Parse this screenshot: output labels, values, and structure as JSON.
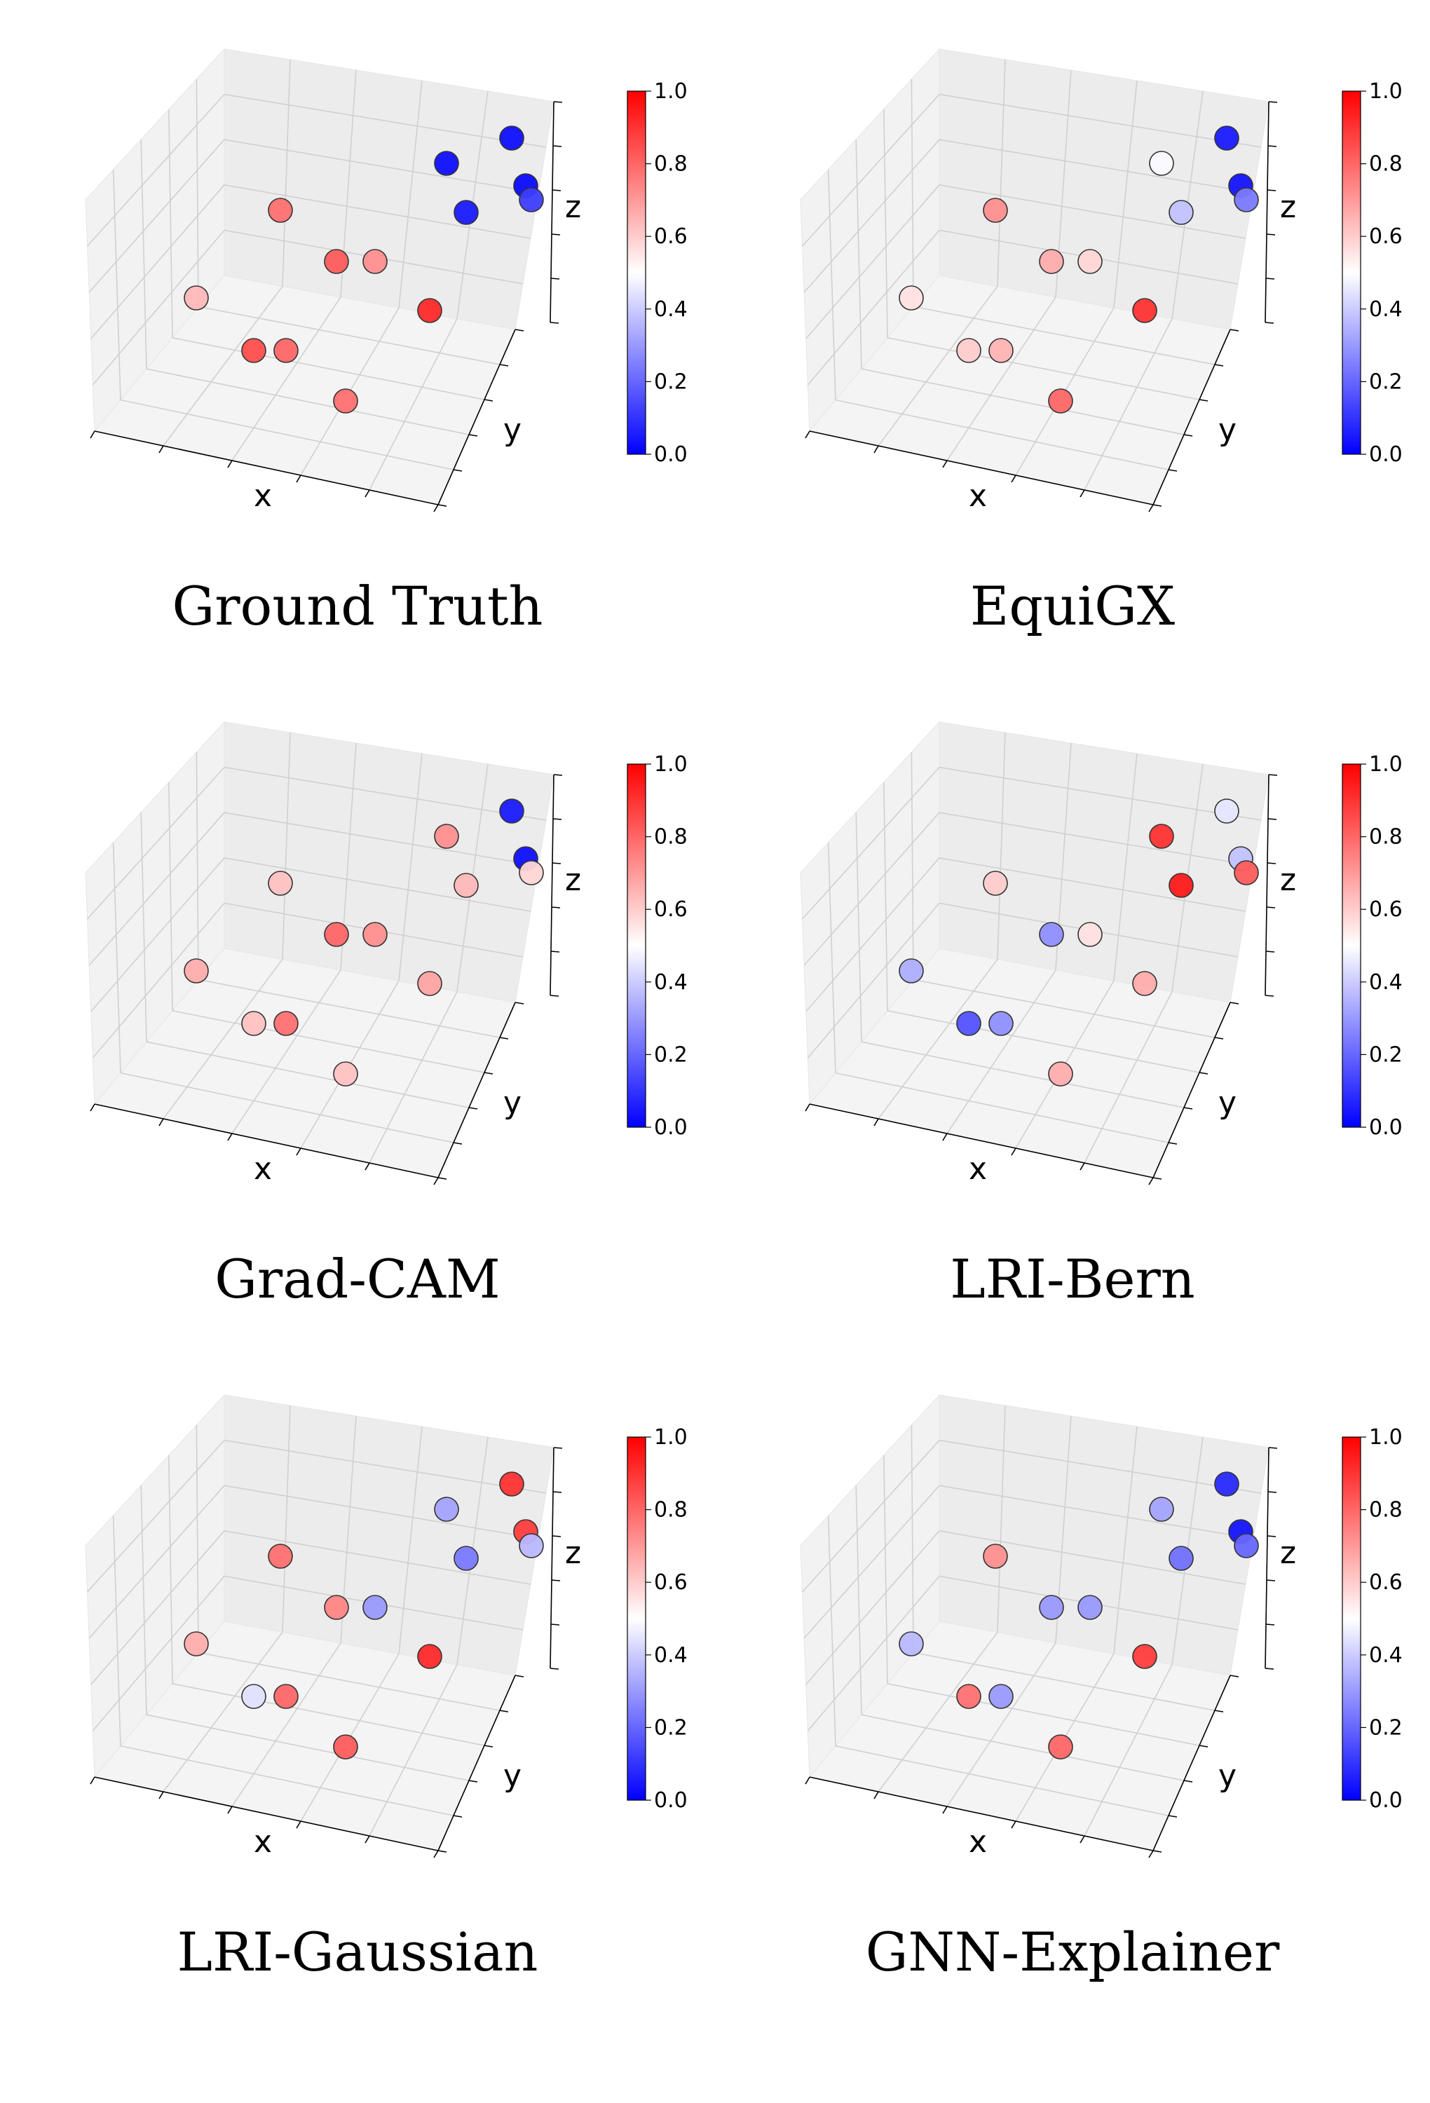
{
  "figure": {
    "colormap": {
      "low": "#0000ff",
      "mid": "#ffffff",
      "high": "#ff0000"
    },
    "colorbar_ticks": [
      "0.0",
      "0.2",
      "0.4",
      "0.6",
      "0.8",
      "1.0"
    ],
    "axis_labels": {
      "x": "x",
      "y": "y",
      "z": "z"
    }
  },
  "chart_data": [
    {
      "type": "scatter",
      "title": "Ground Truth",
      "xlabel": "x",
      "ylabel": "y",
      "zlabel": "z",
      "clim": [
        0,
        1
      ],
      "points": [
        {
          "id": "p1",
          "value": 0.78
        },
        {
          "id": "p2",
          "value": 0.64
        },
        {
          "id": "p3",
          "value": 0.85
        },
        {
          "id": "p4",
          "value": 0.82
        },
        {
          "id": "p5",
          "value": 0.72
        },
        {
          "id": "p6",
          "value": 0.92
        },
        {
          "id": "p7",
          "value": 0.8
        },
        {
          "id": "p8",
          "value": 0.78
        },
        {
          "id": "p9",
          "value": 0.03
        },
        {
          "id": "p10",
          "value": 0.05
        },
        {
          "id": "p11",
          "value": 0.03
        },
        {
          "id": "p12",
          "value": 0.02
        },
        {
          "id": "p13",
          "value": 0.12
        }
      ]
    },
    {
      "type": "scatter",
      "title": "EquiGX",
      "xlabel": "x",
      "ylabel": "y",
      "zlabel": "z",
      "clim": [
        0,
        1
      ],
      "points": [
        {
          "id": "p1",
          "value": 0.72
        },
        {
          "id": "p2",
          "value": 0.56
        },
        {
          "id": "p3",
          "value": 0.6
        },
        {
          "id": "p4",
          "value": 0.66
        },
        {
          "id": "p5",
          "value": 0.58
        },
        {
          "id": "p6",
          "value": 0.9
        },
        {
          "id": "p7",
          "value": 0.65
        },
        {
          "id": "p8",
          "value": 0.8
        },
        {
          "id": "p9",
          "value": 0.49
        },
        {
          "id": "p10",
          "value": 0.38
        },
        {
          "id": "p11",
          "value": 0.05
        },
        {
          "id": "p12",
          "value": 0.04
        },
        {
          "id": "p13",
          "value": 0.24
        }
      ]
    },
    {
      "type": "scatter",
      "title": "Grad-CAM",
      "xlabel": "x",
      "ylabel": "y",
      "zlabel": "z",
      "clim": [
        0,
        1
      ],
      "points": [
        {
          "id": "p1",
          "value": 0.62
        },
        {
          "id": "p2",
          "value": 0.66
        },
        {
          "id": "p3",
          "value": 0.62
        },
        {
          "id": "p4",
          "value": 0.8
        },
        {
          "id": "p5",
          "value": 0.72
        },
        {
          "id": "p6",
          "value": 0.68
        },
        {
          "id": "p7",
          "value": 0.78
        },
        {
          "id": "p8",
          "value": 0.62
        },
        {
          "id": "p9",
          "value": 0.72
        },
        {
          "id": "p10",
          "value": 0.64
        },
        {
          "id": "p11",
          "value": 0.05
        },
        {
          "id": "p12",
          "value": 0.03
        },
        {
          "id": "p13",
          "value": 0.58
        }
      ]
    },
    {
      "type": "scatter",
      "title": "LRI-Bern",
      "xlabel": "x",
      "ylabel": "y",
      "zlabel": "z",
      "clim": [
        0,
        1
      ],
      "points": [
        {
          "id": "p1",
          "value": 0.6
        },
        {
          "id": "p2",
          "value": 0.34
        },
        {
          "id": "p3",
          "value": 0.16
        },
        {
          "id": "p4",
          "value": 0.28
        },
        {
          "id": "p5",
          "value": 0.56
        },
        {
          "id": "p6",
          "value": 0.66
        },
        {
          "id": "p7",
          "value": 0.28
        },
        {
          "id": "p8",
          "value": 0.66
        },
        {
          "id": "p9",
          "value": 0.9
        },
        {
          "id": "p10",
          "value": 0.95
        },
        {
          "id": "p11",
          "value": 0.45
        },
        {
          "id": "p12",
          "value": 0.38
        },
        {
          "id": "p13",
          "value": 0.82
        }
      ]
    },
    {
      "type": "scatter",
      "title": "LRI-Gaussian",
      "xlabel": "x",
      "ylabel": "y",
      "zlabel": "z",
      "clim": [
        0,
        1
      ],
      "points": [
        {
          "id": "p1",
          "value": 0.78
        },
        {
          "id": "p2",
          "value": 0.66
        },
        {
          "id": "p3",
          "value": 0.44
        },
        {
          "id": "p4",
          "value": 0.74
        },
        {
          "id": "p5",
          "value": 0.3
        },
        {
          "id": "p6",
          "value": 0.92
        },
        {
          "id": "p7",
          "value": 0.8
        },
        {
          "id": "p8",
          "value": 0.82
        },
        {
          "id": "p9",
          "value": 0.32
        },
        {
          "id": "p10",
          "value": 0.24
        },
        {
          "id": "p11",
          "value": 0.9
        },
        {
          "id": "p12",
          "value": 0.88
        },
        {
          "id": "p13",
          "value": 0.36
        }
      ]
    },
    {
      "type": "scatter",
      "title": "GNN-Explainer",
      "xlabel": "x",
      "ylabel": "y",
      "zlabel": "z",
      "clim": [
        0,
        1
      ],
      "points": [
        {
          "id": "p1",
          "value": 0.72
        },
        {
          "id": "p2",
          "value": 0.36
        },
        {
          "id": "p3",
          "value": 0.78
        },
        {
          "id": "p4",
          "value": 0.3
        },
        {
          "id": "p5",
          "value": 0.3
        },
        {
          "id": "p6",
          "value": 0.88
        },
        {
          "id": "p7",
          "value": 0.3
        },
        {
          "id": "p8",
          "value": 0.8
        },
        {
          "id": "p9",
          "value": 0.32
        },
        {
          "id": "p10",
          "value": 0.22
        },
        {
          "id": "p11",
          "value": 0.08
        },
        {
          "id": "p12",
          "value": 0.04
        },
        {
          "id": "p13",
          "value": 0.2
        }
      ]
    }
  ]
}
